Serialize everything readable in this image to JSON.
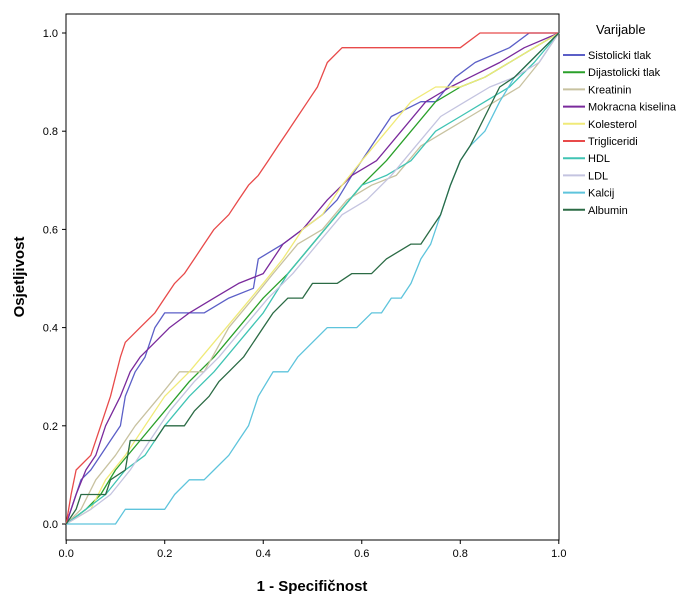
{
  "chart_data": {
    "type": "line",
    "title": "",
    "xlabel": "1 - Specifičnost",
    "ylabel": "Osjetljivost",
    "xlim": [
      0,
      1
    ],
    "ylim": [
      0,
      1
    ],
    "x_ticks": [
      "0.0",
      "0.2",
      "0.4",
      "0.6",
      "0.8",
      "1.0"
    ],
    "y_ticks": [
      "0.0",
      "0.2",
      "0.4",
      "0.6",
      "0.8",
      "1.0"
    ],
    "grid": false,
    "legend": {
      "title": "Varijable",
      "position": "right"
    },
    "series": [
      {
        "name": "Sistolicki tlak",
        "color": "#5b5fc7",
        "points": [
          [
            0,
            0
          ],
          [
            0.01,
            0.03
          ],
          [
            0.02,
            0.06
          ],
          [
            0.03,
            0.09
          ],
          [
            0.05,
            0.11
          ],
          [
            0.07,
            0.14
          ],
          [
            0.09,
            0.17
          ],
          [
            0.11,
            0.2
          ],
          [
            0.12,
            0.26
          ],
          [
            0.14,
            0.31
          ],
          [
            0.16,
            0.34
          ],
          [
            0.18,
            0.4
          ],
          [
            0.2,
            0.43
          ],
          [
            0.28,
            0.43
          ],
          [
            0.33,
            0.46
          ],
          [
            0.38,
            0.48
          ],
          [
            0.39,
            0.54
          ],
          [
            0.44,
            0.57
          ],
          [
            0.48,
            0.6
          ],
          [
            0.52,
            0.63
          ],
          [
            0.55,
            0.66
          ],
          [
            0.58,
            0.71
          ],
          [
            0.62,
            0.77
          ],
          [
            0.66,
            0.83
          ],
          [
            0.72,
            0.86
          ],
          [
            0.75,
            0.86
          ],
          [
            0.79,
            0.91
          ],
          [
            0.83,
            0.94
          ],
          [
            0.9,
            0.97
          ],
          [
            0.94,
            1.0
          ],
          [
            1.0,
            1.0
          ]
        ]
      },
      {
        "name": "Dijastolicki tlak",
        "color": "#2aa02a",
        "points": [
          [
            0,
            0
          ],
          [
            0.04,
            0.03
          ],
          [
            0.07,
            0.06
          ],
          [
            0.1,
            0.11
          ],
          [
            0.15,
            0.17
          ],
          [
            0.2,
            0.23
          ],
          [
            0.25,
            0.29
          ],
          [
            0.3,
            0.34
          ],
          [
            0.35,
            0.4
          ],
          [
            0.4,
            0.46
          ],
          [
            0.45,
            0.51
          ],
          [
            0.5,
            0.57
          ],
          [
            0.55,
            0.63
          ],
          [
            0.6,
            0.69
          ],
          [
            0.65,
            0.74
          ],
          [
            0.7,
            0.8
          ],
          [
            0.75,
            0.86
          ],
          [
            0.8,
            0.89
          ],
          [
            0.85,
            0.91
          ],
          [
            0.9,
            0.94
          ],
          [
            0.95,
            0.97
          ],
          [
            1.0,
            1.0
          ]
        ]
      },
      {
        "name": "Kreatinin",
        "color": "#c8c2a0",
        "points": [
          [
            0,
            0
          ],
          [
            0.03,
            0.03
          ],
          [
            0.06,
            0.09
          ],
          [
            0.1,
            0.14
          ],
          [
            0.14,
            0.2
          ],
          [
            0.19,
            0.26
          ],
          [
            0.23,
            0.31
          ],
          [
            0.28,
            0.31
          ],
          [
            0.33,
            0.4
          ],
          [
            0.38,
            0.46
          ],
          [
            0.42,
            0.51
          ],
          [
            0.47,
            0.57
          ],
          [
            0.52,
            0.6
          ],
          [
            0.57,
            0.66
          ],
          [
            0.62,
            0.69
          ],
          [
            0.67,
            0.71
          ],
          [
            0.72,
            0.77
          ],
          [
            0.77,
            0.8
          ],
          [
            0.82,
            0.83
          ],
          [
            0.87,
            0.86
          ],
          [
            0.92,
            0.89
          ],
          [
            0.96,
            0.94
          ],
          [
            1.0,
            1.0
          ]
        ]
      },
      {
        "name": "Mokracna kiselina",
        "color": "#7a2a9c",
        "points": [
          [
            0,
            0
          ],
          [
            0.02,
            0.06
          ],
          [
            0.04,
            0.11
          ],
          [
            0.06,
            0.14
          ],
          [
            0.08,
            0.2
          ],
          [
            0.11,
            0.26
          ],
          [
            0.13,
            0.31
          ],
          [
            0.15,
            0.34
          ],
          [
            0.18,
            0.37
          ],
          [
            0.21,
            0.4
          ],
          [
            0.25,
            0.43
          ],
          [
            0.3,
            0.46
          ],
          [
            0.35,
            0.49
          ],
          [
            0.4,
            0.51
          ],
          [
            0.44,
            0.57
          ],
          [
            0.48,
            0.6
          ],
          [
            0.53,
            0.66
          ],
          [
            0.58,
            0.71
          ],
          [
            0.63,
            0.74
          ],
          [
            0.68,
            0.8
          ],
          [
            0.73,
            0.86
          ],
          [
            0.78,
            0.89
          ],
          [
            0.82,
            0.91
          ],
          [
            0.88,
            0.94
          ],
          [
            0.93,
            0.97
          ],
          [
            1.0,
            1.0
          ]
        ]
      },
      {
        "name": "Kolesterol",
        "color": "#f0ea78",
        "points": [
          [
            0,
            0
          ],
          [
            0.05,
            0.03
          ],
          [
            0.08,
            0.09
          ],
          [
            0.12,
            0.14
          ],
          [
            0.16,
            0.2
          ],
          [
            0.2,
            0.26
          ],
          [
            0.25,
            0.31
          ],
          [
            0.3,
            0.37
          ],
          [
            0.35,
            0.43
          ],
          [
            0.4,
            0.49
          ],
          [
            0.44,
            0.54
          ],
          [
            0.48,
            0.6
          ],
          [
            0.52,
            0.63
          ],
          [
            0.56,
            0.69
          ],
          [
            0.6,
            0.74
          ],
          [
            0.65,
            0.8
          ],
          [
            0.7,
            0.86
          ],
          [
            0.75,
            0.89
          ],
          [
            0.8,
            0.89
          ],
          [
            0.85,
            0.91
          ],
          [
            0.9,
            0.94
          ],
          [
            0.95,
            0.97
          ],
          [
            1.0,
            1.0
          ]
        ]
      },
      {
        "name": "Trigliceridi",
        "color": "#e84a4a",
        "points": [
          [
            0,
            0
          ],
          [
            0.01,
            0.06
          ],
          [
            0.02,
            0.11
          ],
          [
            0.05,
            0.14
          ],
          [
            0.07,
            0.2
          ],
          [
            0.09,
            0.26
          ],
          [
            0.11,
            0.34
          ],
          [
            0.12,
            0.37
          ],
          [
            0.15,
            0.4
          ],
          [
            0.18,
            0.43
          ],
          [
            0.2,
            0.46
          ],
          [
            0.22,
            0.49
          ],
          [
            0.24,
            0.51
          ],
          [
            0.26,
            0.54
          ],
          [
            0.28,
            0.57
          ],
          [
            0.3,
            0.6
          ],
          [
            0.33,
            0.63
          ],
          [
            0.35,
            0.66
          ],
          [
            0.37,
            0.69
          ],
          [
            0.39,
            0.71
          ],
          [
            0.41,
            0.74
          ],
          [
            0.43,
            0.77
          ],
          [
            0.45,
            0.8
          ],
          [
            0.47,
            0.83
          ],
          [
            0.49,
            0.86
          ],
          [
            0.51,
            0.89
          ],
          [
            0.53,
            0.94
          ],
          [
            0.56,
            0.97
          ],
          [
            0.8,
            0.97
          ],
          [
            0.84,
            1.0
          ],
          [
            1.0,
            1.0
          ]
        ]
      },
      {
        "name": "HDL",
        "color": "#40c4b4",
        "points": [
          [
            0,
            0
          ],
          [
            0.04,
            0.03
          ],
          [
            0.08,
            0.06
          ],
          [
            0.12,
            0.11
          ],
          [
            0.16,
            0.14
          ],
          [
            0.2,
            0.2
          ],
          [
            0.25,
            0.26
          ],
          [
            0.3,
            0.31
          ],
          [
            0.35,
            0.37
          ],
          [
            0.4,
            0.43
          ],
          [
            0.45,
            0.51
          ],
          [
            0.5,
            0.57
          ],
          [
            0.55,
            0.63
          ],
          [
            0.6,
            0.69
          ],
          [
            0.65,
            0.71
          ],
          [
            0.7,
            0.74
          ],
          [
            0.75,
            0.8
          ],
          [
            0.8,
            0.83
          ],
          [
            0.85,
            0.86
          ],
          [
            0.9,
            0.89
          ],
          [
            0.95,
            0.94
          ],
          [
            1.0,
            1.0
          ]
        ]
      },
      {
        "name": "LDL",
        "color": "#c4c4e0",
        "points": [
          [
            0,
            0
          ],
          [
            0.05,
            0.03
          ],
          [
            0.09,
            0.06
          ],
          [
            0.13,
            0.11
          ],
          [
            0.17,
            0.17
          ],
          [
            0.21,
            0.23
          ],
          [
            0.26,
            0.29
          ],
          [
            0.31,
            0.34
          ],
          [
            0.36,
            0.4
          ],
          [
            0.41,
            0.46
          ],
          [
            0.46,
            0.51
          ],
          [
            0.51,
            0.57
          ],
          [
            0.56,
            0.63
          ],
          [
            0.61,
            0.66
          ],
          [
            0.66,
            0.71
          ],
          [
            0.71,
            0.77
          ],
          [
            0.76,
            0.83
          ],
          [
            0.81,
            0.86
          ],
          [
            0.86,
            0.89
          ],
          [
            0.91,
            0.91
          ],
          [
            0.96,
            0.94
          ],
          [
            1.0,
            1.0
          ]
        ]
      },
      {
        "name": "Kalcij",
        "color": "#5ec4dc",
        "points": [
          [
            0,
            0
          ],
          [
            0.1,
            0
          ],
          [
            0.12,
            0.03
          ],
          [
            0.2,
            0.03
          ],
          [
            0.22,
            0.06
          ],
          [
            0.25,
            0.09
          ],
          [
            0.28,
            0.09
          ],
          [
            0.3,
            0.11
          ],
          [
            0.33,
            0.14
          ],
          [
            0.35,
            0.17
          ],
          [
            0.37,
            0.2
          ],
          [
            0.39,
            0.26
          ],
          [
            0.42,
            0.31
          ],
          [
            0.45,
            0.31
          ],
          [
            0.47,
            0.34
          ],
          [
            0.5,
            0.37
          ],
          [
            0.53,
            0.4
          ],
          [
            0.59,
            0.4
          ],
          [
            0.62,
            0.43
          ],
          [
            0.64,
            0.43
          ],
          [
            0.66,
            0.46
          ],
          [
            0.68,
            0.46
          ],
          [
            0.7,
            0.49
          ],
          [
            0.72,
            0.54
          ],
          [
            0.74,
            0.57
          ],
          [
            0.76,
            0.63
          ],
          [
            0.78,
            0.69
          ],
          [
            0.8,
            0.74
          ],
          [
            0.82,
            0.77
          ],
          [
            0.85,
            0.8
          ],
          [
            0.88,
            0.86
          ],
          [
            0.91,
            0.91
          ],
          [
            0.94,
            0.94
          ],
          [
            0.97,
            0.97
          ],
          [
            1.0,
            1.0
          ]
        ]
      },
      {
        "name": "Albumin",
        "color": "#2b6b45",
        "points": [
          [
            0,
            0
          ],
          [
            0.02,
            0.03
          ],
          [
            0.03,
            0.06
          ],
          [
            0.08,
            0.06
          ],
          [
            0.09,
            0.09
          ],
          [
            0.12,
            0.11
          ],
          [
            0.13,
            0.17
          ],
          [
            0.18,
            0.17
          ],
          [
            0.2,
            0.2
          ],
          [
            0.24,
            0.2
          ],
          [
            0.26,
            0.23
          ],
          [
            0.29,
            0.26
          ],
          [
            0.31,
            0.29
          ],
          [
            0.33,
            0.31
          ],
          [
            0.36,
            0.34
          ],
          [
            0.38,
            0.37
          ],
          [
            0.4,
            0.4
          ],
          [
            0.42,
            0.43
          ],
          [
            0.45,
            0.46
          ],
          [
            0.48,
            0.46
          ],
          [
            0.5,
            0.49
          ],
          [
            0.55,
            0.49
          ],
          [
            0.58,
            0.51
          ],
          [
            0.62,
            0.51
          ],
          [
            0.65,
            0.54
          ],
          [
            0.7,
            0.57
          ],
          [
            0.72,
            0.57
          ],
          [
            0.74,
            0.6
          ],
          [
            0.76,
            0.63
          ],
          [
            0.78,
            0.69
          ],
          [
            0.8,
            0.74
          ],
          [
            0.82,
            0.77
          ],
          [
            0.85,
            0.83
          ],
          [
            0.88,
            0.89
          ],
          [
            0.91,
            0.91
          ],
          [
            0.94,
            0.94
          ],
          [
            0.97,
            0.97
          ],
          [
            1.0,
            1.0
          ]
        ]
      }
    ]
  }
}
